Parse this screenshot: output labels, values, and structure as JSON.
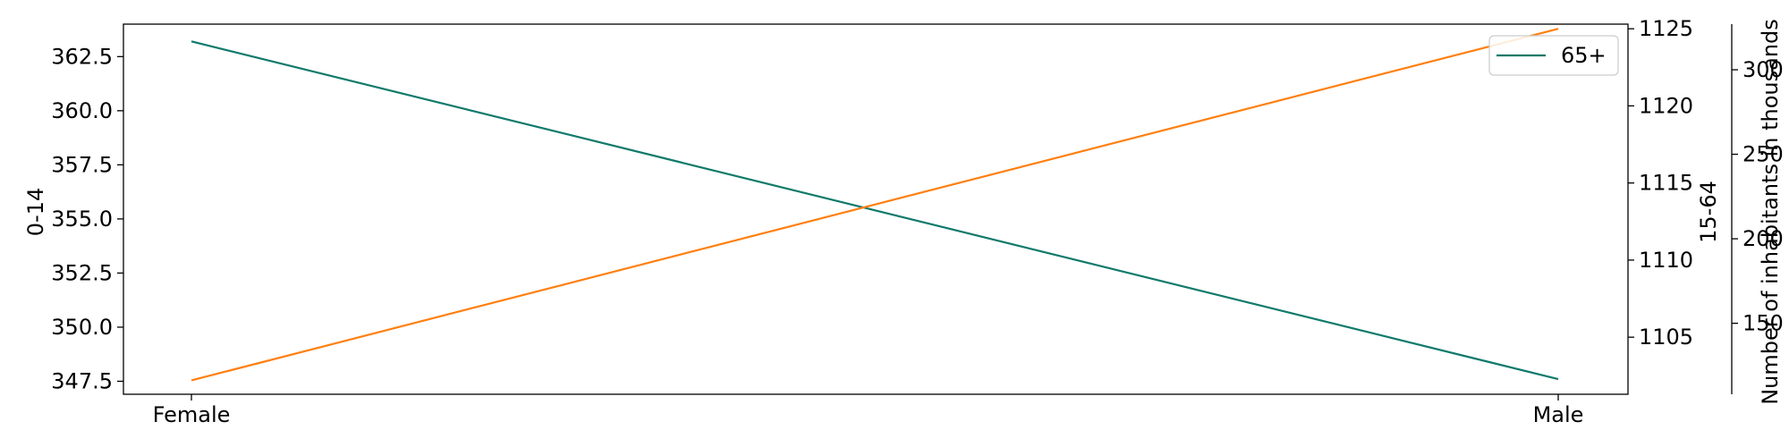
{
  "chart_data": {
    "type": "line",
    "categories": [
      "Female",
      "Male"
    ],
    "series": [
      {
        "name": "0-14",
        "axis": "y_left",
        "values": [
          363.2,
          347.6
        ],
        "color": "#0f7a6b"
      },
      {
        "name": "15-64",
        "axis": "y_right",
        "values": [
          1102.2,
          1125.0
        ],
        "color": "#ff7f0e"
      },
      {
        "name": "65+",
        "axis": "y_right2",
        "values": [
          null,
          null
        ],
        "color": "#0f7a6b"
      }
    ],
    "axes": {
      "y_left": {
        "label": "0-14",
        "ylim": [
          346.9,
          364.0
        ],
        "ticks": [
          "347.5",
          "350.0",
          "352.5",
          "355.0",
          "357.5",
          "360.0",
          "362.5"
        ],
        "tick_values": [
          347.5,
          350.0,
          352.5,
          355.0,
          357.5,
          360.0,
          362.5
        ]
      },
      "y_right": {
        "label": "15-64",
        "ylim": [
          1101.3,
          1125.3
        ],
        "ticks": [
          "1105",
          "1110",
          "1115",
          "1120",
          "1125"
        ],
        "tick_values": [
          1105,
          1110,
          1115,
          1120,
          1125
        ]
      },
      "y_right2": {
        "label": "Number of inhabitants in thousands",
        "ylim": [
          108,
          327
        ],
        "ticks": [
          "150",
          "200",
          "250",
          "300"
        ],
        "tick_values": [
          150,
          200,
          250,
          300
        ]
      }
    },
    "legend": {
      "placement": "top-right",
      "entries": [
        {
          "label": "65+",
          "color": "#0f7a6b"
        }
      ]
    },
    "grid": false
  }
}
